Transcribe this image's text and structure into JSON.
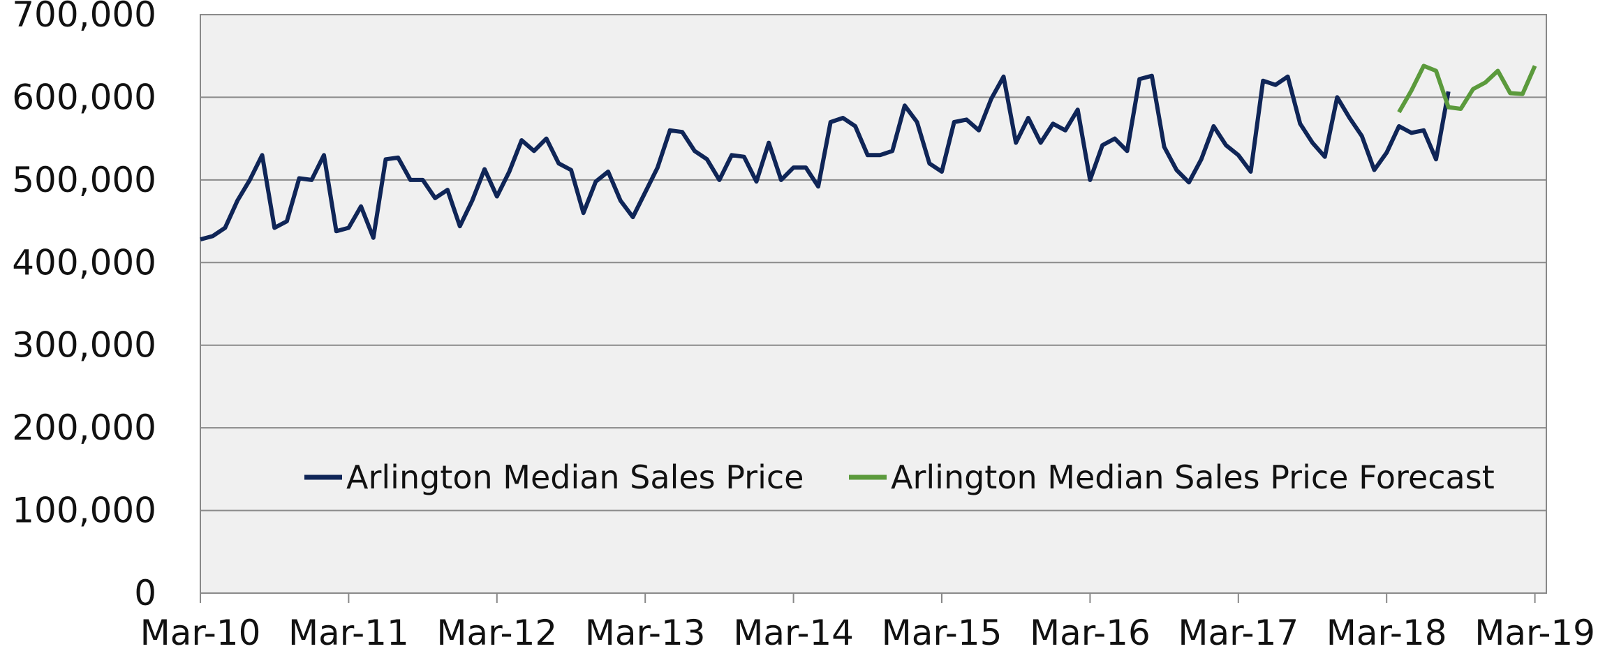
{
  "chart_data": {
    "type": "line",
    "categories": [
      "Mar-10",
      null,
      null,
      null,
      null,
      null,
      null,
      null,
      null,
      null,
      null,
      null,
      "Mar-11",
      null,
      null,
      null,
      null,
      null,
      null,
      null,
      null,
      null,
      null,
      null,
      "Mar-12",
      null,
      null,
      null,
      null,
      null,
      null,
      null,
      null,
      null,
      null,
      null,
      "Mar-13",
      null,
      null,
      null,
      null,
      null,
      null,
      null,
      null,
      null,
      null,
      null,
      "Mar-14",
      null,
      null,
      null,
      null,
      null,
      null,
      null,
      null,
      null,
      null,
      null,
      "Mar-15",
      null,
      null,
      null,
      null,
      null,
      null,
      null,
      null,
      null,
      null,
      null,
      "Mar-16",
      null,
      null,
      null,
      null,
      null,
      null,
      null,
      null,
      null,
      null,
      null,
      "Mar-17",
      null,
      null,
      null,
      null,
      null,
      null,
      null,
      null,
      null,
      null,
      null,
      "Mar-18",
      null,
      null,
      null,
      null,
      null,
      null,
      null,
      null,
      null,
      null,
      null,
      "Mar-19"
    ],
    "series": [
      {
        "name": "Arlington Median Sales Price",
        "color": "#0f2557",
        "values": [
          428000,
          432000,
          442000,
          475000,
          500000,
          530000,
          442000,
          450000,
          502000,
          500000,
          530000,
          438000,
          442000,
          468000,
          430000,
          525000,
          527000,
          500000,
          500000,
          478000,
          488000,
          444000,
          475000,
          513000,
          480000,
          510000,
          548000,
          535000,
          550000,
          520000,
          512000,
          460000,
          498000,
          510000,
          475000,
          455000,
          485000,
          515000,
          560000,
          558000,
          535000,
          525000,
          500000,
          530000,
          528000,
          498000,
          545000,
          500000,
          515000,
          515000,
          492000,
          570000,
          575000,
          565000,
          530000,
          530000,
          535000,
          590000,
          570000,
          520000,
          510000,
          570000,
          573000,
          560000,
          598000,
          625000,
          545000,
          575000,
          545000,
          568000,
          560000,
          585000,
          500000,
          542000,
          550000,
          535000,
          622000,
          626000,
          540000,
          512000,
          497000,
          525000,
          565000,
          542000,
          530000,
          510000,
          620000,
          615000,
          625000,
          568000,
          545000,
          528000,
          600000,
          575000,
          553000,
          512000,
          533000,
          565000,
          557000,
          560000,
          525000,
          607000,
          null,
          null,
          null,
          null,
          null,
          null,
          null
        ]
      },
      {
        "name": "Arlington Median Sales Price Forecast",
        "color": "#5b9a3c",
        "values": [
          null,
          null,
          null,
          null,
          null,
          null,
          null,
          null,
          null,
          null,
          null,
          null,
          null,
          null,
          null,
          null,
          null,
          null,
          null,
          null,
          null,
          null,
          null,
          null,
          null,
          null,
          null,
          null,
          null,
          null,
          null,
          null,
          null,
          null,
          null,
          null,
          null,
          null,
          null,
          null,
          null,
          null,
          null,
          null,
          null,
          null,
          null,
          null,
          null,
          null,
          null,
          null,
          null,
          null,
          null,
          null,
          null,
          null,
          null,
          null,
          null,
          null,
          null,
          null,
          null,
          null,
          null,
          null,
          null,
          null,
          null,
          null,
          null,
          null,
          null,
          null,
          null,
          null,
          null,
          null,
          null,
          null,
          null,
          null,
          null,
          null,
          null,
          null,
          null,
          null,
          null,
          null,
          null,
          null,
          null,
          null,
          null,
          582000,
          608000,
          638000,
          632000,
          588000,
          586000,
          610000,
          618000,
          632000,
          605000,
          604000,
          638000
        ]
      }
    ],
    "ylim": [
      0,
      700000
    ],
    "yticks": [
      0,
      {
        "value": 100000,
        "label": "100,000"
      },
      {
        "value": 200000,
        "label": "200,000"
      },
      {
        "value": 300000,
        "label": "300,000"
      },
      {
        "value": 400000,
        "label": "400,000"
      },
      {
        "value": 500000,
        "label": "500,000"
      },
      {
        "value": 600000,
        "label": "600,000"
      },
      {
        "value": 700000,
        "label": "700,000"
      }
    ],
    "grid": true,
    "legend": "center"
  }
}
